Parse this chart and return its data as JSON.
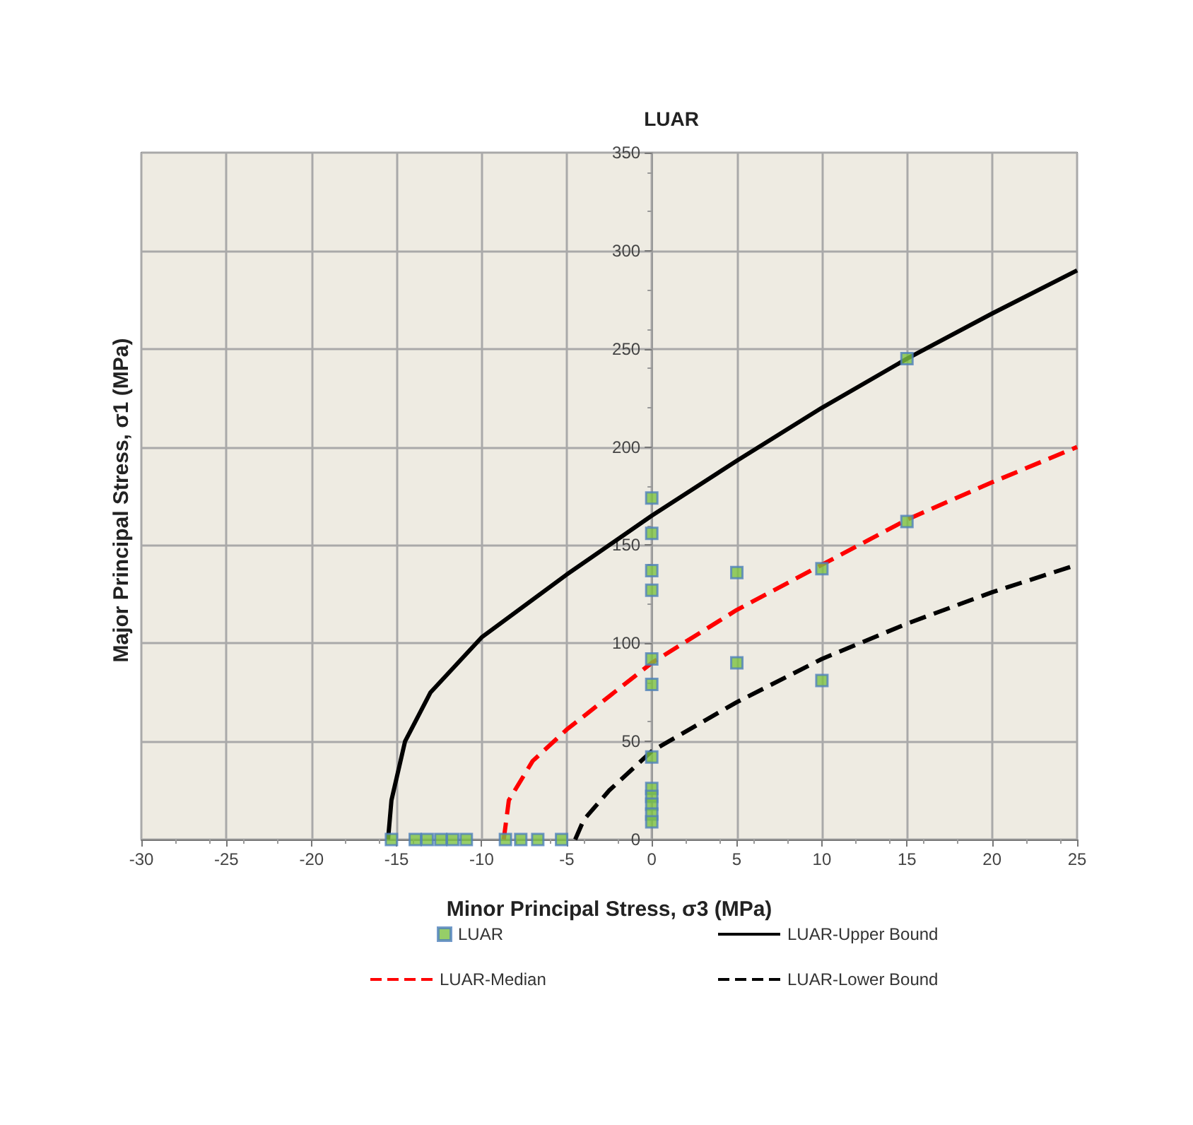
{
  "chart_data": {
    "type": "scatter",
    "title": "LUAR",
    "xlabel": "Minor Principal Stress, σ3 (MPa)",
    "ylabel": "Major Principal Stress, σ1 (MPa)",
    "xlim": [
      -30,
      25
    ],
    "xticks": [
      -30,
      -25,
      -20,
      -15,
      -10,
      -5,
      0,
      5,
      10,
      15,
      20,
      25
    ],
    "ylim": [
      0,
      350
    ],
    "yticks": [
      0,
      50,
      100,
      150,
      200,
      250,
      300,
      350
    ],
    "grid": true,
    "legend": "bottom",
    "marker": "square",
    "series": [
      {
        "name": "LUAR",
        "type": "scatter",
        "color": "#7cc242",
        "x": [
          -15.3,
          -13.9,
          -13.2,
          -12.4,
          -11.7,
          -10.9,
          -8.6,
          -7.7,
          -6.7,
          -5.3,
          0,
          0,
          0,
          0,
          0,
          0,
          0,
          0,
          0,
          0,
          0,
          0,
          5,
          5,
          10,
          10,
          15,
          15
        ],
        "values": [
          0,
          0,
          0,
          0,
          0,
          0,
          0,
          0,
          0,
          0,
          174,
          156,
          137,
          127,
          92,
          79,
          42,
          26,
          22,
          18,
          13,
          9,
          136,
          90,
          138,
          81,
          245,
          162
        ]
      },
      {
        "name": "LUAR-Upper Bound",
        "type": "line",
        "color": "#000000",
        "line_style": "solid",
        "marker": "none",
        "x": [
          -15.5,
          -15.3,
          -14.5,
          -13,
          -10,
          -5,
          0,
          5,
          10,
          15,
          20,
          25
        ],
        "values": [
          0,
          20,
          50,
          75,
          103,
          135,
          165,
          193,
          220,
          245,
          268,
          290
        ]
      },
      {
        "name": "LUAR-Median",
        "type": "line",
        "color": "#ff0000",
        "line_style": "dashed",
        "marker": "none",
        "x": [
          -8.7,
          -8.4,
          -7,
          -5,
          -2.5,
          0,
          5,
          10,
          15,
          20,
          25
        ],
        "values": [
          0,
          20,
          40,
          56,
          73,
          90,
          117,
          140,
          163,
          182,
          200
        ]
      },
      {
        "name": "LUAR-Lower Bound",
        "type": "line",
        "color": "#000000",
        "line_style": "dashed",
        "marker": "none",
        "x": [
          -4.5,
          -4,
          -2.5,
          0,
          5,
          10,
          15,
          20,
          25
        ],
        "values": [
          0,
          10,
          25,
          45,
          70,
          92,
          110,
          126,
          140
        ]
      }
    ]
  }
}
